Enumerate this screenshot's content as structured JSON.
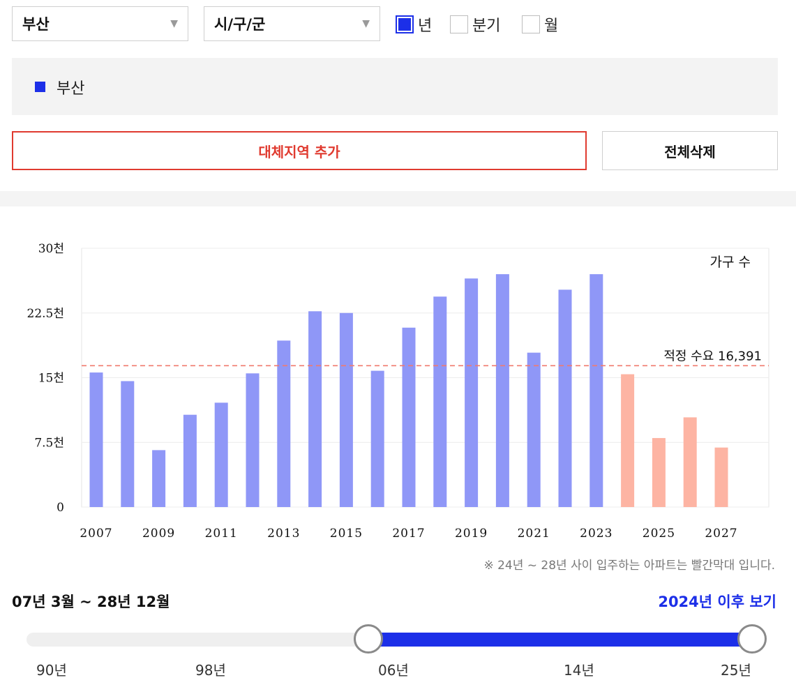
{
  "filters": {
    "region": "부산",
    "district": "시/구/군",
    "periods": [
      {
        "label": "년",
        "checked": true
      },
      {
        "label": "분기",
        "checked": false
      },
      {
        "label": "월",
        "checked": false
      }
    ]
  },
  "legend": {
    "region_name": "부산",
    "color": "#1c2fe8"
  },
  "buttons": {
    "add_region": "대체지역 추가",
    "delete_all": "전체삭제"
  },
  "chart_data": {
    "type": "bar",
    "categories": [
      "2007",
      "2008",
      "2009",
      "2010",
      "2011",
      "2012",
      "2013",
      "2014",
      "2015",
      "2016",
      "2017",
      "2018",
      "2019",
      "2020",
      "2021",
      "2022",
      "2023",
      "2024",
      "2025",
      "2026",
      "2027"
    ],
    "values": [
      15600,
      14600,
      6600,
      10700,
      12100,
      15500,
      19300,
      22700,
      22500,
      15800,
      20800,
      24400,
      26500,
      27000,
      17900,
      25200,
      27000,
      15400,
      8000,
      10400,
      6900
    ],
    "actual_color": "#8f97f7",
    "forecast_color": "#fdb4a3",
    "forecast_from": "2024",
    "ylim": [
      0,
      30000
    ],
    "y_ticks": [
      "0",
      "7.5천",
      "15천",
      "22.5천",
      "30천"
    ],
    "x_tick_labels": [
      "2007",
      "2009",
      "2011",
      "2013",
      "2015",
      "2017",
      "2019",
      "2021",
      "2023",
      "2025",
      "2027"
    ],
    "series_label": "가구 수",
    "reference": {
      "label": "적정 수요 16,391",
      "value": 16391,
      "color": "#f07a6e"
    }
  },
  "note": "※ 24년 ~ 28년 사이 입주하는 아파트는 빨간막대 입니다.",
  "range": {
    "label": "07년 3월 ~ 28년 12월",
    "after_link": "2024년 이후 보기",
    "ticks": [
      "90년",
      "98년",
      "06년",
      "14년",
      "25년"
    ]
  }
}
